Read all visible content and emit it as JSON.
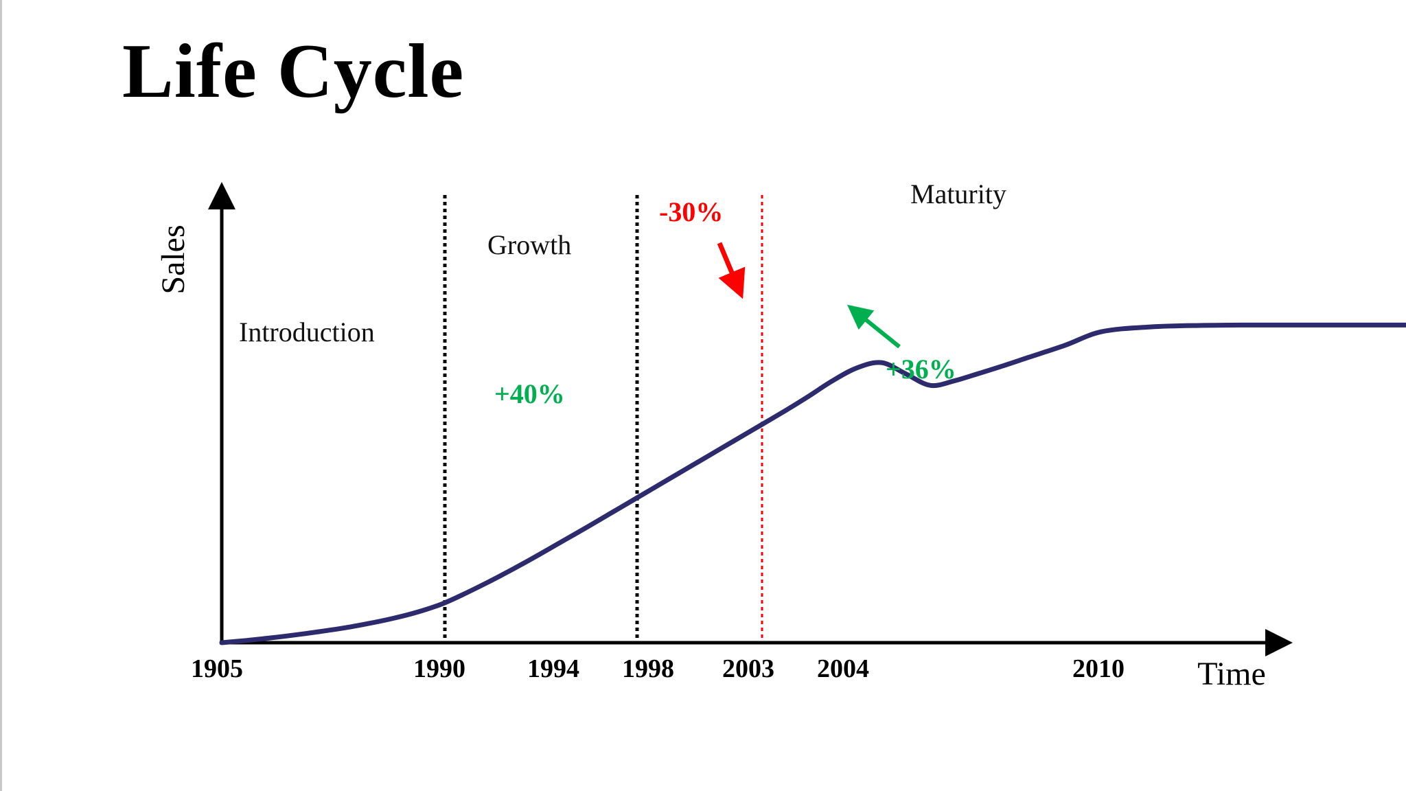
{
  "title": "Life Cycle",
  "chart_data": {
    "type": "line",
    "title": "Life Cycle",
    "xlabel": "Time",
    "ylabel": "Sales",
    "ylim": [
      0,
      100
    ],
    "grid": false,
    "x_tick_labels": [
      "1905",
      "1990",
      "1994",
      "1998",
      "2003",
      "2004",
      "2010"
    ],
    "phase_labels": [
      "Introduction",
      "Growth",
      "Maturity"
    ],
    "phase_dividers": [
      {
        "at": "1990",
        "style": "dotted",
        "color": "#000000"
      },
      {
        "at": "1998",
        "style": "dotted",
        "color": "#000000"
      },
      {
        "at": "2003",
        "style": "dotted",
        "color": "#ff0000"
      }
    ],
    "series": [
      {
        "name": "Sales",
        "color": "#2e2a6e",
        "x": [
          0,
          0.1,
          0.2,
          0.3,
          0.4,
          0.5,
          0.6,
          0.7,
          0.8,
          0.9,
          1.0,
          1.1,
          1.2,
          1.3,
          1.4,
          1.5,
          1.6,
          1.7,
          1.8,
          1.9,
          2.0,
          2.1,
          2.2,
          2.3,
          2.4,
          2.5,
          2.6,
          2.7,
          2.8,
          2.9,
          3.0,
          3.1,
          3.2,
          3.3,
          3.45,
          3.6,
          3.8,
          4.0,
          4.2,
          4.5,
          4.65,
          4.75,
          4.85,
          5.0,
          5.2,
          5.4,
          5.7,
          6.0,
          6.3,
          6.6,
          7.0
        ],
        "y": [
          0,
          0.6,
          1.3,
          2.1,
          3.0,
          4.0,
          5.2,
          6.6,
          8.3,
          10.5,
          13.5,
          16.8,
          20.3,
          24.0,
          27.8,
          31.6,
          35.5,
          39.4,
          43.3,
          47.2,
          51.1,
          55.0,
          58.9,
          62.8,
          66.9,
          71.2,
          74.7,
          76.1,
          73.0,
          69.9,
          71.2,
          73.2,
          75.3,
          77.5,
          80.8,
          84.5,
          85.8,
          86.2,
          86.3,
          86.3,
          86.3,
          86.3,
          86.3,
          86.2,
          86.2,
          86.1,
          86.0,
          85.9,
          85.8,
          85.7,
          85.5
        ]
      }
    ],
    "annotations": [
      {
        "text": "-30%",
        "color": "#ff0000",
        "arrow": "down"
      },
      {
        "text": "+40%",
        "color": "#00b050",
        "arrow": "none"
      },
      {
        "text": "+36%",
        "color": "#00b050",
        "arrow": "up-left"
      }
    ]
  }
}
